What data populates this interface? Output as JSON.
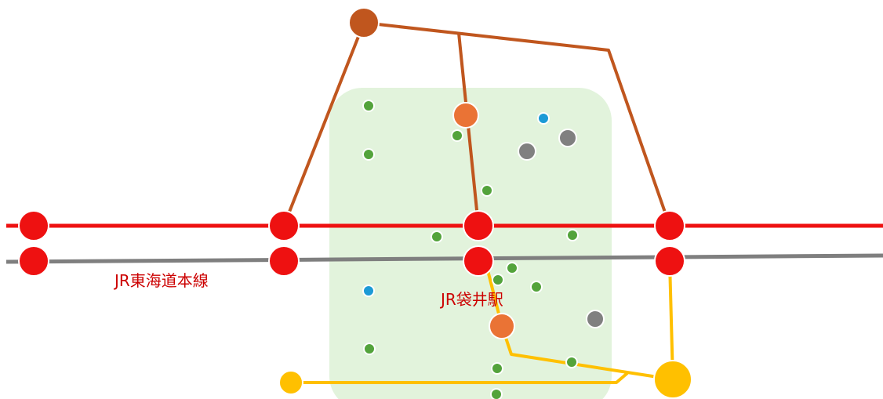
{
  "colors": {
    "jr_line_red": "#ee1111",
    "jr_line_gray": "#7f7f7f",
    "route_brown": "#c0561e",
    "route_yellow": "#ffc000",
    "area_fill": "#e2f3dc",
    "poi_green": "#53a33b",
    "poi_blue": "#1c9ad6",
    "poi_gray": "#808080",
    "stop_orange": "#ea7335",
    "hub_brown": "#c0561e",
    "hub_yellow": "#ffc000",
    "label_red": "#cc0000"
  },
  "labels": {
    "line_name": "JR東海道本線",
    "station_name": "JR袋井駅"
  },
  "icons": {
    "station": "red-station-circle",
    "poi_green": "green-dot-icon",
    "poi_blue": "blue-dot-icon",
    "poi_gray": "gray-dot-icon"
  }
}
